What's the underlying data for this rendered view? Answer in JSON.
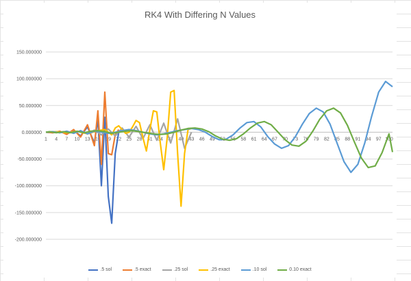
{
  "chart_data": {
    "type": "line",
    "title": "RK4 With Differing N Values",
    "ylim": [
      -200,
      150
    ],
    "y_ticks": [
      "150.000000",
      "100.000000",
      "50.000000",
      "0.000000",
      "-50.000000",
      "-100.000000",
      "-150.000000",
      "-200.000000"
    ],
    "y_tick_values": [
      150,
      100,
      50,
      0,
      -50,
      -100,
      -150,
      -200
    ],
    "x_ticks": [
      "1",
      "4",
      "7",
      "10",
      "13",
      "16",
      "19",
      "22",
      "25",
      "28",
      "31",
      "34",
      "37",
      "40",
      "43",
      "46",
      "49",
      "52",
      "55",
      "58",
      "61",
      "64",
      "67",
      "70",
      "73",
      "76",
      "79",
      "82",
      "85",
      "88",
      "91",
      "94",
      "97",
      "100"
    ],
    "x_range": [
      1,
      101
    ],
    "grid": "horizontal",
    "legend_position": "bottom",
    "series": [
      {
        "name": ".5 sol",
        "color": "#4472c4",
        "x": [
          1,
          3,
          5,
          7,
          9,
          11,
          13,
          15,
          16,
          17,
          18,
          19,
          20,
          21,
          22
        ],
        "y": [
          0,
          -1,
          1,
          -3,
          4,
          -7,
          10,
          -20,
          25,
          -100,
          28,
          -120,
          -170,
          -40,
          0
        ]
      },
      {
        "name": ".5 exact",
        "color": "#ed7d31",
        "x": [
          1,
          3,
          5,
          7,
          9,
          11,
          13,
          15,
          16,
          17,
          18,
          19,
          20,
          21,
          22
        ],
        "y": [
          0,
          -1,
          2,
          -4,
          5,
          -9,
          14,
          -25,
          40,
          -60,
          75,
          -40,
          -42,
          -5,
          5
        ]
      },
      {
        "name": ".25 sol",
        "color": "#a5a5a5",
        "x": [
          1,
          3,
          5,
          7,
          9,
          11,
          13,
          15,
          17,
          19,
          21,
          23,
          25,
          27,
          29,
          31,
          33,
          35,
          37,
          39,
          41,
          43
        ],
        "y": [
          0,
          1,
          -1,
          2,
          -2,
          3,
          -3,
          4,
          -5,
          6,
          -7,
          8,
          -9,
          11,
          -12,
          14,
          -15,
          17,
          -20,
          25,
          -30,
          0
        ]
      },
      {
        "name": ".25 exact",
        "color": "#ffc000",
        "x": [
          1,
          4,
          7,
          10,
          13,
          16,
          17,
          18,
          19,
          20,
          21,
          22,
          23,
          24,
          25,
          26,
          27,
          28,
          29,
          30,
          31,
          32,
          33,
          34,
          35,
          36,
          37,
          38,
          39,
          40,
          41,
          42,
          43
        ],
        "y": [
          0,
          1,
          -1,
          2,
          -3,
          3,
          4,
          5,
          0,
          -5,
          8,
          12,
          5,
          -2,
          0,
          10,
          22,
          18,
          -10,
          -35,
          5,
          40,
          38,
          -20,
          -70,
          -10,
          75,
          78,
          -40,
          -138,
          -40,
          5,
          7
        ]
      },
      {
        "name": ".10 sol",
        "color": "#5b9bd5",
        "x": [
          1,
          3,
          5,
          7,
          9,
          11,
          13,
          15,
          17,
          19,
          21,
          23,
          25,
          27,
          29,
          31,
          33,
          35,
          37,
          39,
          41,
          43,
          45,
          47,
          49,
          51,
          53,
          55,
          57,
          59,
          61,
          63,
          65,
          67,
          69,
          71,
          73,
          75,
          77,
          79,
          81,
          83,
          85,
          87,
          89,
          91,
          93,
          95,
          97,
          99,
          101
        ],
        "y": [
          0,
          1,
          -1,
          2,
          -2,
          3,
          -3,
          2,
          0,
          -2,
          0,
          3,
          5,
          3,
          0,
          -3,
          -5,
          -3,
          0,
          3,
          5,
          7,
          5,
          0,
          -8,
          -14,
          -13,
          -5,
          8,
          18,
          20,
          10,
          -8,
          -22,
          -30,
          -25,
          -8,
          15,
          35,
          45,
          38,
          15,
          -20,
          -55,
          -75,
          -60,
          -20,
          30,
          75,
          95,
          85
        ]
      },
      {
        "name": "0.10 exact",
        "color": "#70ad47",
        "x": [
          1,
          2,
          4,
          6,
          8,
          10,
          12,
          14,
          16,
          18,
          20,
          22,
          24,
          26,
          28,
          30,
          32,
          34,
          36,
          38,
          40,
          42,
          44,
          46,
          48,
          50,
          52,
          54,
          56,
          58,
          60,
          62,
          64,
          66,
          68,
          70,
          72,
          74,
          76,
          78,
          80,
          82,
          84,
          86,
          88,
          90,
          92,
          94,
          96,
          98,
          100,
          101
        ],
        "y": [
          0,
          1,
          -1,
          1,
          -1,
          2,
          -1,
          2,
          3,
          1,
          -2,
          0,
          2,
          3,
          1,
          -1,
          -3,
          -4,
          -3,
          0,
          4,
          7,
          8,
          6,
          1,
          -7,
          -13,
          -15,
          -12,
          -3,
          8,
          17,
          20,
          14,
          0,
          -14,
          -24,
          -26,
          -17,
          2,
          24,
          40,
          45,
          36,
          13,
          -18,
          -48,
          -66,
          -63,
          -38,
          -3,
          -37
        ]
      }
    ]
  }
}
